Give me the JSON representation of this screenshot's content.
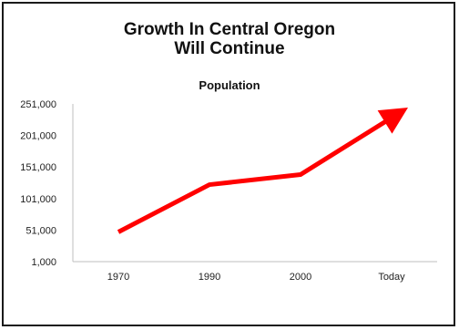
{
  "chart_data": {
    "type": "line",
    "title_lines": [
      "Growth In Central Oregon",
      "Will Continue"
    ],
    "subtitle": "Population",
    "categories": [
      "1970",
      "1990",
      "2000",
      "Today"
    ],
    "values": [
      48000,
      123000,
      139000,
      226000
    ],
    "yticks": [
      "1,000",
      "51,000",
      "101,000",
      "151,000",
      "201,000",
      "251,000"
    ],
    "ylim": [
      1000,
      251000
    ],
    "grid": false,
    "line_color": "#ff0000",
    "arrow_end": true,
    "arrow_tip_value": 251000
  }
}
